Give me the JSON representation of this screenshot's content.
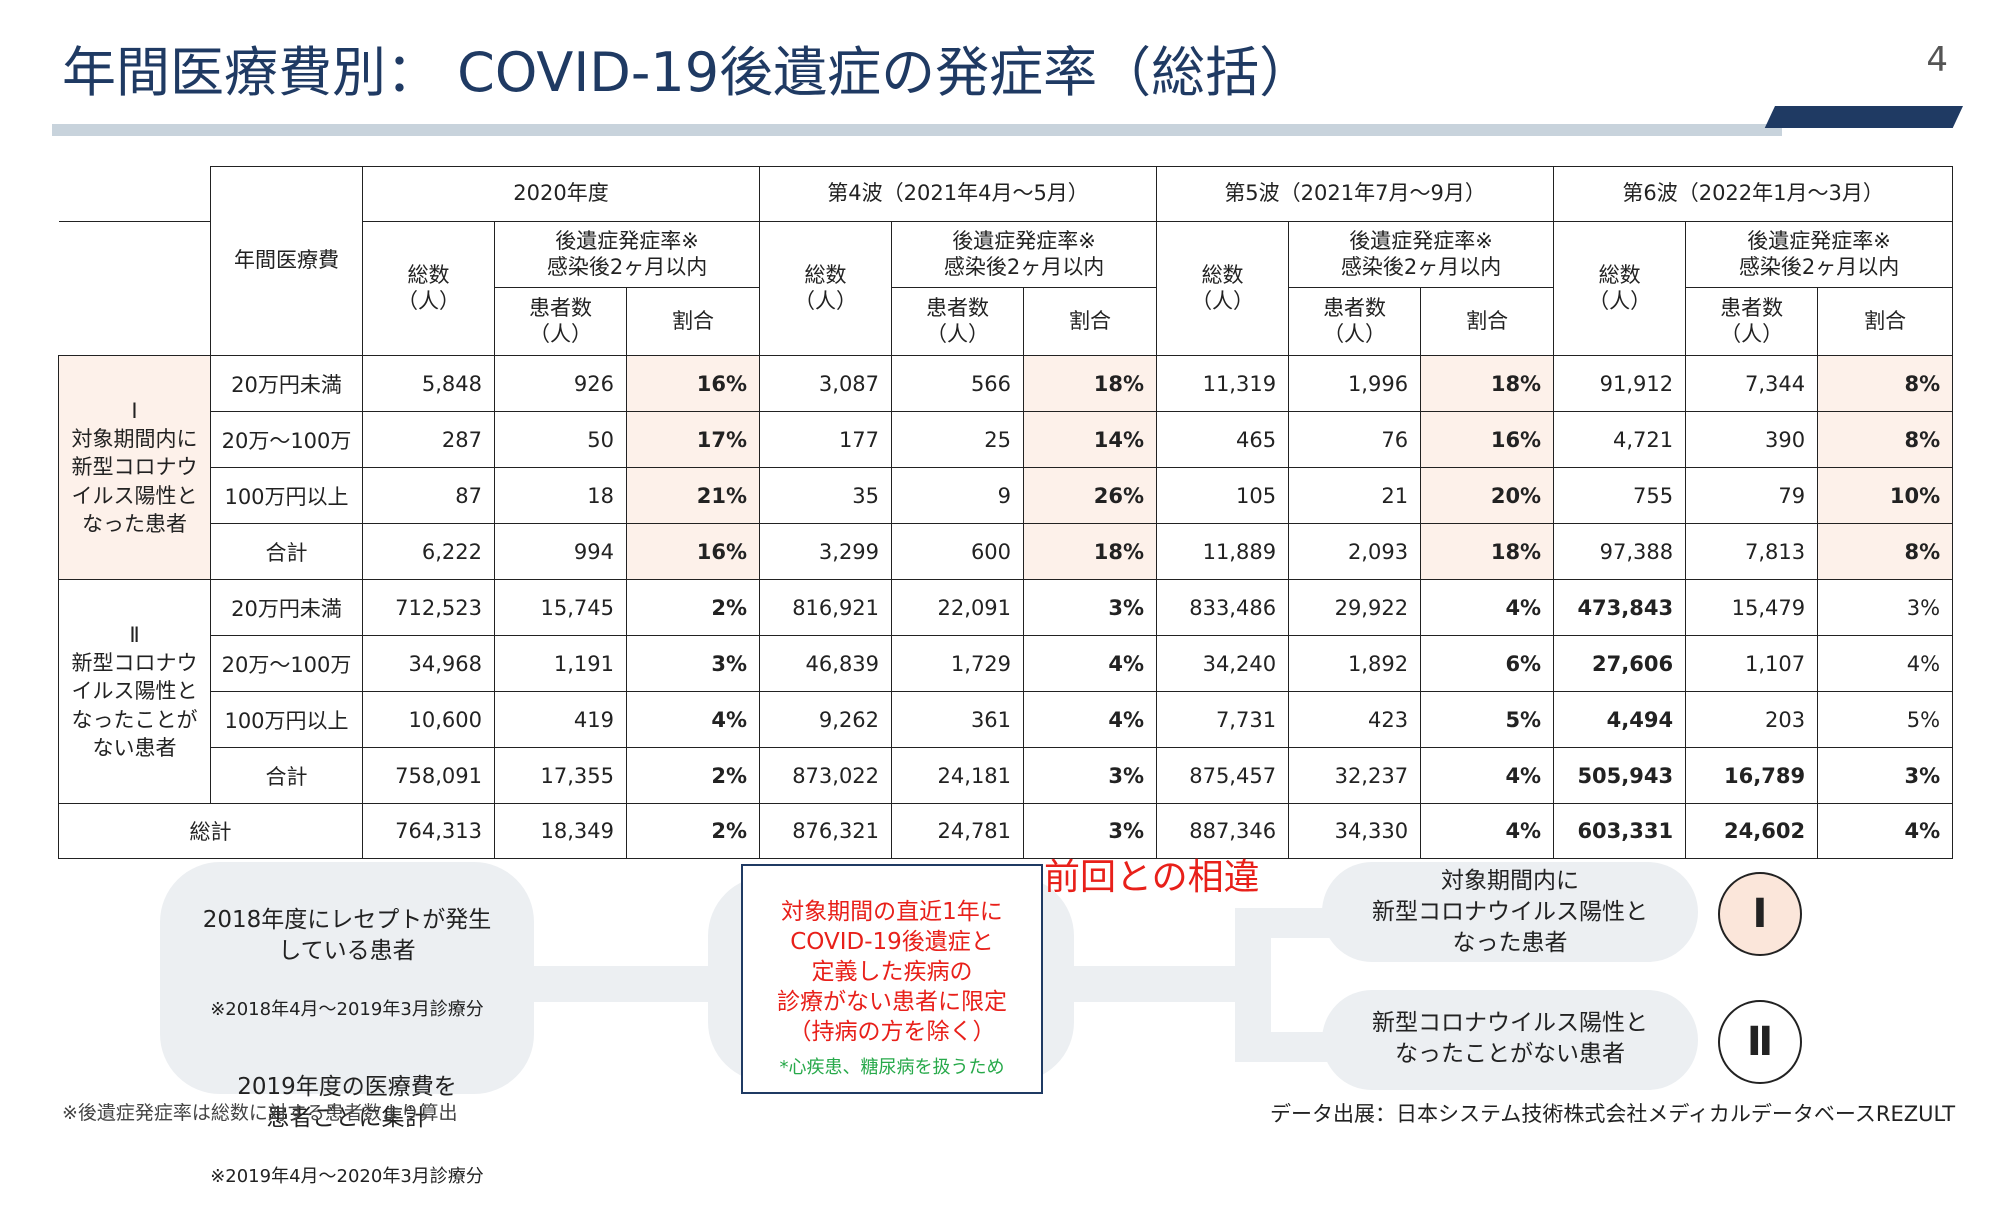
{
  "title": "年間医療費別： COVID-19後遺症の発症率（総括）",
  "page_number": "4",
  "table": {
    "col_label": "年間医療費",
    "periods": [
      "2020年度",
      "第4波（2021年4月～5月）",
      "第5波（2021年7月～9月）",
      "第6波（2022年1月～3月）"
    ],
    "total_label": "総数\n（人）",
    "rate_group_label": "後遺症発症率※\n感染後2ヶ月以内",
    "patients_label": "患者数\n（人）",
    "ratio_label": "割合",
    "group1_label": "Ⅰ\n対象期間内に\n新型コロナウ\nイルス陽性と\nなった患者",
    "group2_label": "Ⅱ\n新型コロナウ\nイルス陽性と\nなったことが\nない患者",
    "group1": [
      {
        "cat": "20万円未満",
        "vals": [
          "5,848",
          "926",
          "16%",
          "3,087",
          "566",
          "18%",
          "11,319",
          "1,996",
          "18%",
          "91,912",
          "7,344",
          "8%"
        ]
      },
      {
        "cat": "20万～100万",
        "vals": [
          "287",
          "50",
          "17%",
          "177",
          "25",
          "14%",
          "465",
          "76",
          "16%",
          "4,721",
          "390",
          "8%"
        ]
      },
      {
        "cat": "100万円以上",
        "vals": [
          "87",
          "18",
          "21%",
          "35",
          "9",
          "26%",
          "105",
          "21",
          "20%",
          "755",
          "79",
          "10%"
        ]
      },
      {
        "cat": "合計",
        "vals": [
          "6,222",
          "994",
          "16%",
          "3,299",
          "600",
          "18%",
          "11,889",
          "2,093",
          "18%",
          "97,388",
          "7,813",
          "8%"
        ]
      }
    ],
    "group2": [
      {
        "cat": "20万円未満",
        "vals": [
          "712,523",
          "15,745",
          "2%",
          "816,921",
          "22,091",
          "3%",
          "833,486",
          "29,922",
          "4%",
          "473,843",
          "15,479",
          "3%"
        ]
      },
      {
        "cat": "20万～100万",
        "vals": [
          "34,968",
          "1,191",
          "3%",
          "46,839",
          "1,729",
          "4%",
          "34,240",
          "1,892",
          "6%",
          "27,606",
          "1,107",
          "4%"
        ]
      },
      {
        "cat": "100万円以上",
        "vals": [
          "10,600",
          "419",
          "4%",
          "9,262",
          "361",
          "4%",
          "7,731",
          "423",
          "5%",
          "4,494",
          "203",
          "5%"
        ]
      },
      {
        "cat": "合計",
        "vals": [
          "758,091",
          "17,355",
          "2%",
          "873,022",
          "24,181",
          "3%",
          "875,457",
          "32,237",
          "4%",
          "505,943",
          "16,789",
          "3%"
        ]
      }
    ],
    "grand_total": {
      "label": "総計",
      "vals": [
        "764,313",
        "18,349",
        "2%",
        "876,321",
        "24,781",
        "3%",
        "887,346",
        "34,330",
        "4%",
        "603,331",
        "24,602",
        "4%"
      ]
    }
  },
  "flow": {
    "left_line1": "2018年度にレセプトが発生\nしている患者",
    "left_note1": "※2018年4月～2019年3月診療分",
    "left_line2": "2019年度の医療費を\n患者ごとに集計",
    "left_note2": "※2019年4月～2020年3月診療分",
    "center_red": "対象期間の直近1年に\nCOVID-19後遺症と\n定義した疾病の\n診療がない患者に限定\n（持病の方を除く）",
    "center_green": "*心疾患、糖尿病を扱うため",
    "diff_label": "前回との相違",
    "right1": "対象期間内に\n新型コロナウイルス陽性と\nなった患者",
    "right2": "新型コロナウイルス陽性と\nなったことがない患者",
    "circle1": "Ⅰ",
    "circle2": "Ⅱ"
  },
  "footnote": "※後遺症発症率は総数に対する患者数より算出",
  "source": "データ出展：日本システム技術株式会社メディカルデータベースREZULT",
  "colors": {
    "navy": "#1f3a63",
    "red": "#e8201a",
    "green": "#27a94a",
    "peach": "#fdf1ea",
    "pill": "#eceff2"
  }
}
